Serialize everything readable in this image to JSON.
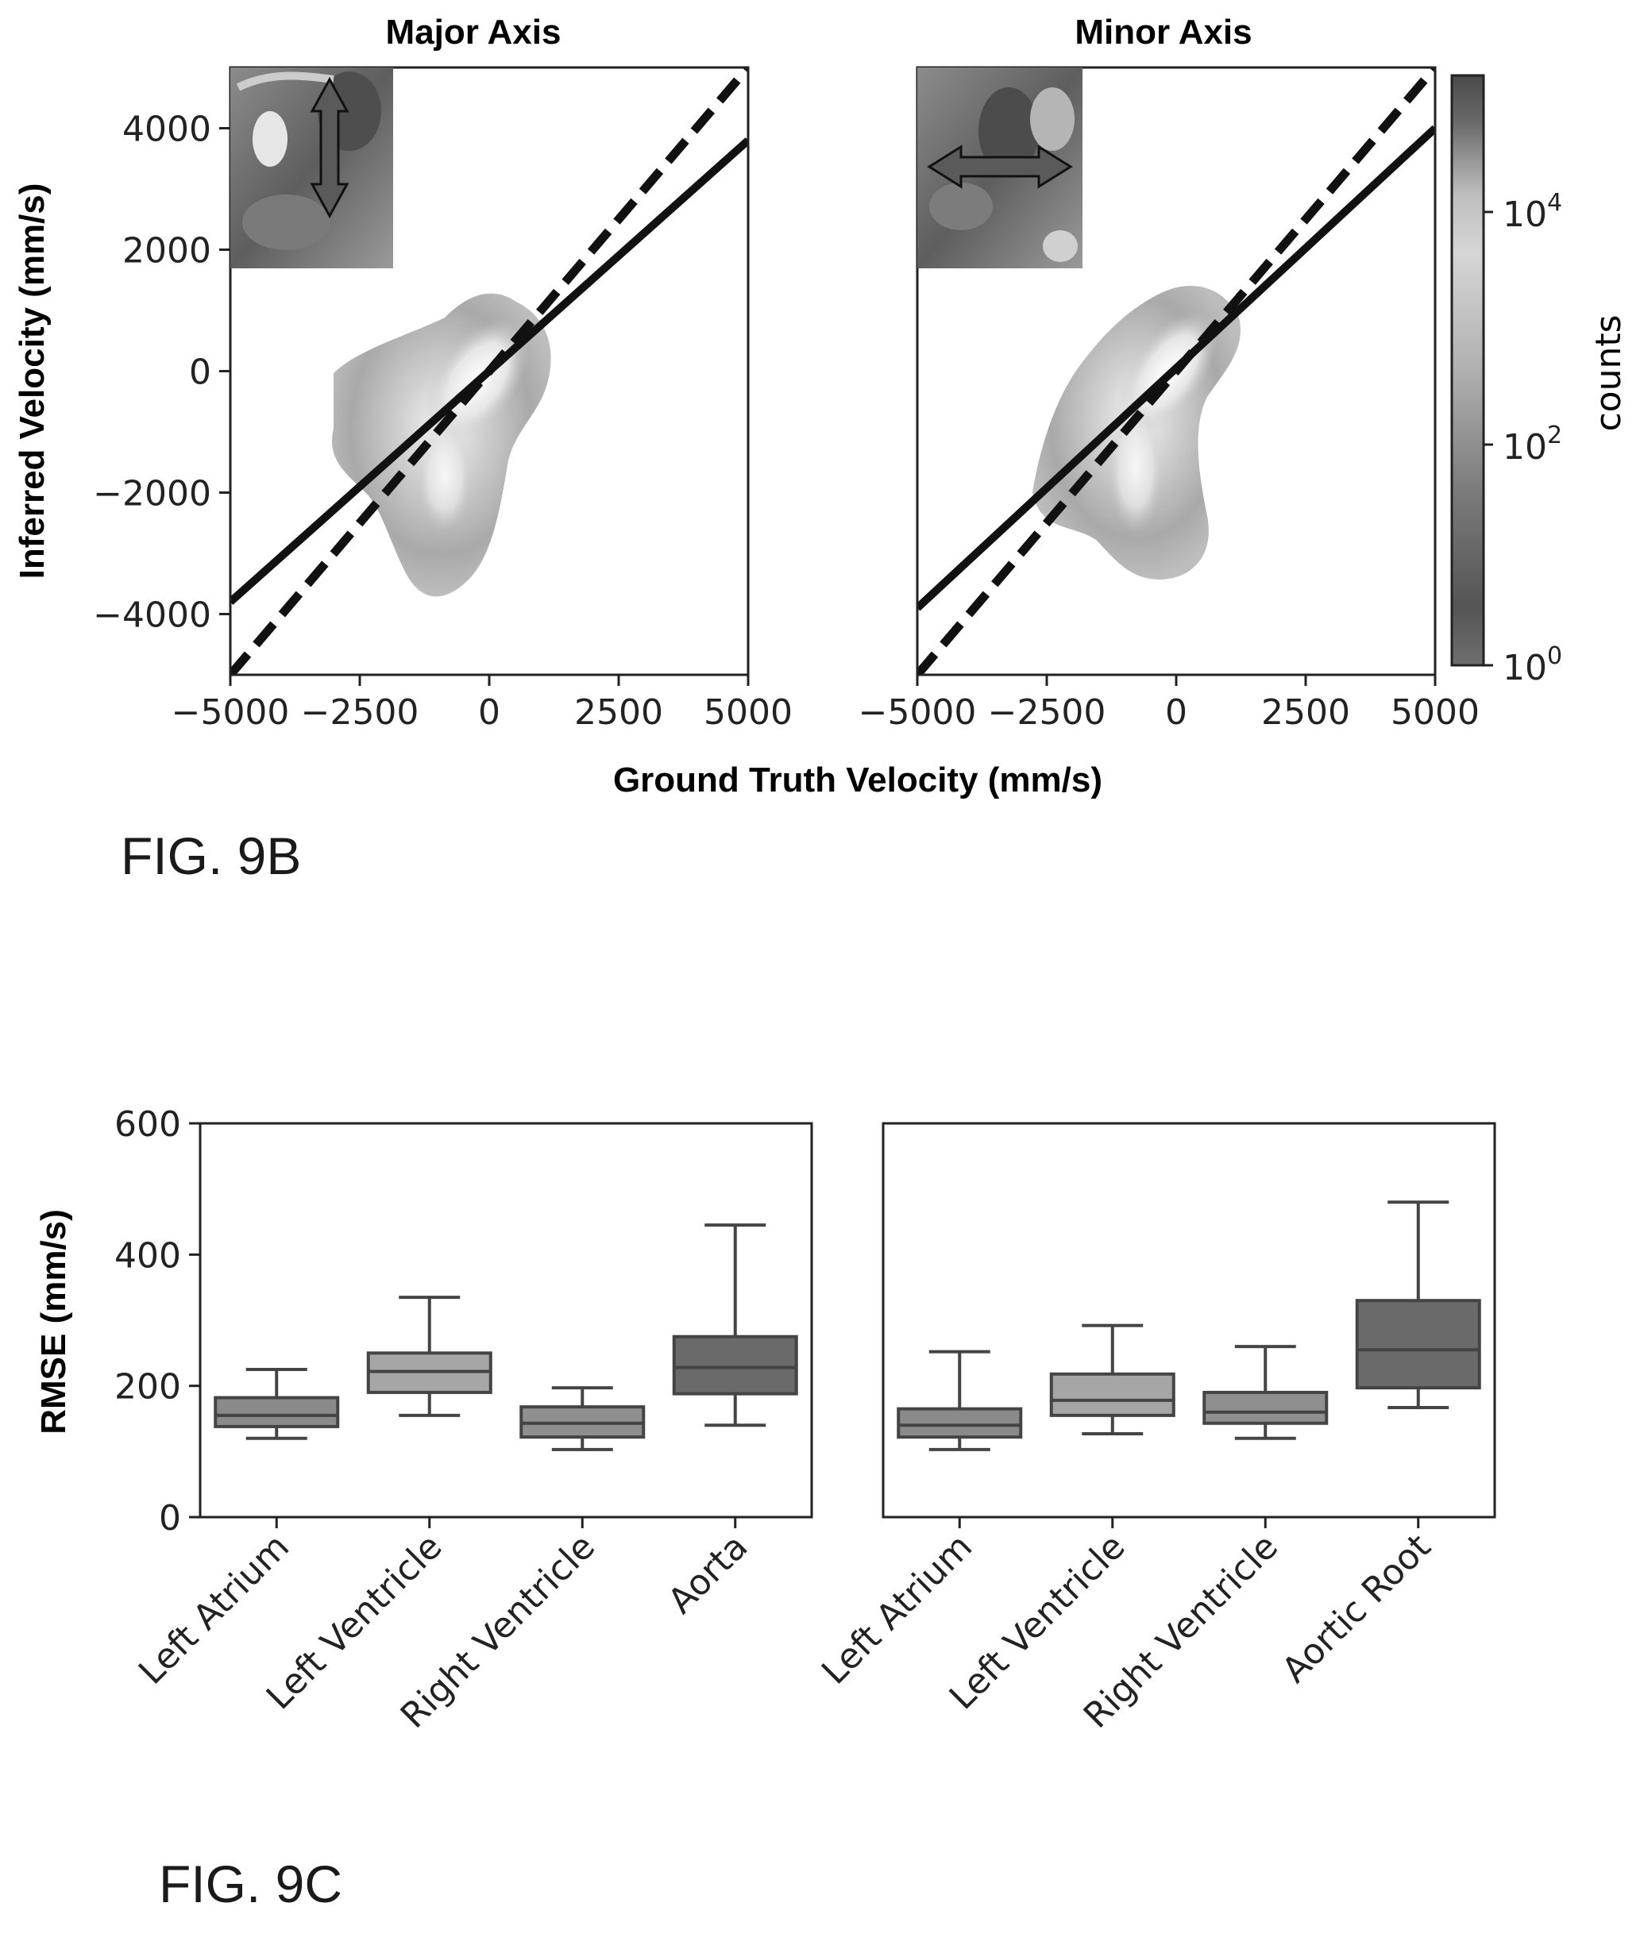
{
  "figure_labels": {
    "fig_9b": "FIG. 9B",
    "fig_9c": "FIG. 9C"
  },
  "chart_data": [
    {
      "type": "heatmap",
      "title": "Major Axis",
      "xlabel": "Ground Truth Velocity (mm/s)",
      "ylabel": "Inferred Velocity (mm/s)",
      "xlim": [
        -5000,
        5000
      ],
      "ylim": [
        -5000,
        5000
      ],
      "x_ticks": [
        "−5000",
        "−2500",
        "0",
        "2500",
        "5000"
      ],
      "y_ticks": [
        "−4000",
        "−2000",
        "0",
        "2000",
        "4000"
      ],
      "y_tick_values": [
        -4000,
        -2000,
        0,
        2000,
        4000
      ],
      "x_tick_values": [
        -5000,
        -2500,
        0,
        2500,
        5000
      ],
      "identity_line": {
        "style": "dashed",
        "from": [
          -5000,
          -5000
        ],
        "to": [
          5000,
          5000
        ]
      },
      "fit_line": {
        "style": "solid",
        "from": [
          -5000,
          -3800
        ],
        "to": [
          5000,
          3800
        ]
      },
      "inset": {
        "icon": "vertical-double-arrow-icon"
      },
      "colorbar": {
        "label": "counts",
        "scale": "log",
        "ticks": [
          "10^0",
          "10^2",
          "10^4"
        ]
      }
    },
    {
      "type": "heatmap",
      "title": "Minor Axis",
      "xlabel": "Ground Truth Velocity (mm/s)",
      "xlim": [
        -5000,
        5000
      ],
      "ylim": [
        -5000,
        5000
      ],
      "x_ticks": [
        "−5000",
        "−2500",
        "0",
        "2500",
        "5000"
      ],
      "x_tick_values": [
        -5000,
        -2500,
        0,
        2500,
        5000
      ],
      "identity_line": {
        "style": "dashed",
        "from": [
          -5000,
          -5000
        ],
        "to": [
          5000,
          5000
        ]
      },
      "fit_line": {
        "style": "solid",
        "from": [
          -5000,
          -3900
        ],
        "to": [
          5000,
          4000
        ]
      },
      "inset": {
        "icon": "horizontal-double-arrow-icon"
      },
      "colorbar": {
        "label": "counts",
        "scale": "log",
        "ticks": [
          "10^0",
          "10^2",
          "10^4"
        ]
      }
    },
    {
      "type": "box",
      "ylabel": "RMSE (mm/s)",
      "ylim": [
        0,
        600
      ],
      "y_ticks": [
        "0",
        "200",
        "400",
        "600"
      ],
      "y_tick_values": [
        0,
        200,
        400,
        600
      ],
      "categories": [
        "Left Atrium",
        "Left Ventricle",
        "Right Ventricle",
        "Aorta"
      ],
      "boxes": [
        {
          "whisker_low": 120,
          "q1": 138,
          "median": 155,
          "q3": 182,
          "whisker_high": 225,
          "color": "#8a8a8a"
        },
        {
          "whisker_low": 155,
          "q1": 190,
          "median": 222,
          "q3": 250,
          "whisker_high": 335,
          "color": "#a6a6a6"
        },
        {
          "whisker_low": 103,
          "q1": 122,
          "median": 143,
          "q3": 168,
          "whisker_high": 197,
          "color": "#8f8f8f"
        },
        {
          "whisker_low": 140,
          "q1": 188,
          "median": 228,
          "q3": 275,
          "whisker_high": 445,
          "color": "#6a6a6a"
        }
      ]
    },
    {
      "type": "box",
      "ylim": [
        0,
        600
      ],
      "categories": [
        "Left Atrium",
        "Left Ventricle",
        "Right Ventricle",
        "Aortic Root"
      ],
      "boxes": [
        {
          "whisker_low": 103,
          "q1": 122,
          "median": 140,
          "q3": 165,
          "whisker_high": 252,
          "color": "#8a8a8a"
        },
        {
          "whisker_low": 127,
          "q1": 155,
          "median": 178,
          "q3": 218,
          "whisker_high": 292,
          "color": "#a6a6a6"
        },
        {
          "whisker_low": 120,
          "q1": 143,
          "median": 160,
          "q3": 190,
          "whisker_high": 260,
          "color": "#8f8f8f"
        },
        {
          "whisker_low": 167,
          "q1": 197,
          "median": 255,
          "q3": 330,
          "whisker_high": 480,
          "color": "#6a6a6a"
        }
      ]
    }
  ]
}
